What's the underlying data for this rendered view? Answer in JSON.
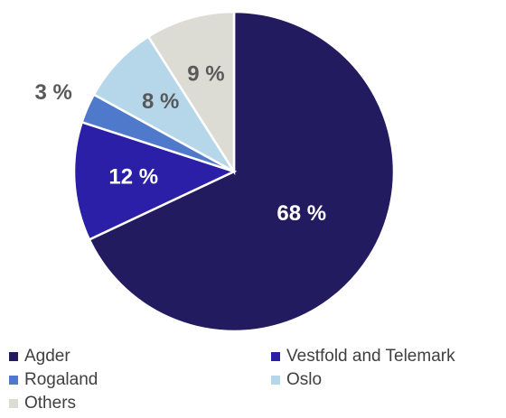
{
  "chart_data": {
    "type": "pie",
    "categories": [
      "Agder",
      "Vestfold and Telemark",
      "Rogaland",
      "Oslo",
      "Others"
    ],
    "values": [
      68,
      12,
      3,
      8,
      9
    ],
    "value_labels": [
      "68 %",
      "12 %",
      "3 %",
      "8 %",
      "9 %"
    ],
    "colors": [
      "#231b5f",
      "#2a1fa6",
      "#4f7acb",
      "#b6d7ea",
      "#dcdcd5"
    ],
    "legend": "bottom"
  }
}
